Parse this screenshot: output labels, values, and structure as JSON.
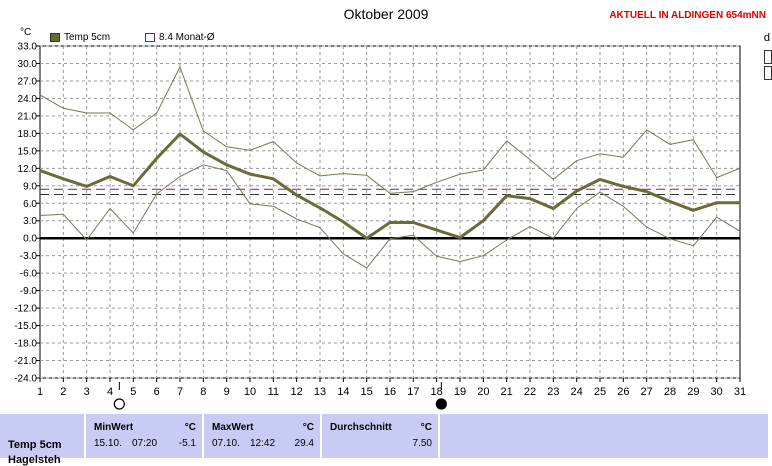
{
  "header": {
    "title": "Oktober 2009",
    "location": "AKTUELL IN ALDINGEN 654mNN",
    "unit": "°C",
    "edge_letter": "d"
  },
  "legend": {
    "temp_label": "Temp 5cm",
    "temp_color": "#6b6b3a",
    "avg_label": "8.4 Monat-Ø",
    "avg_color": "#6a2b6a"
  },
  "chart_data": {
    "type": "line",
    "title": "Oktober 2009",
    "ylabel": "°C",
    "ylim": [
      -24,
      33
    ],
    "yticks": [
      "33.0",
      "30.0",
      "27.0",
      "24.0",
      "21.0",
      "18.0",
      "15.0",
      "12.0",
      "9.0",
      "6.0",
      "3.0",
      "0.0",
      "-3.0",
      "-6.0",
      "-9.0",
      "-12.0",
      "-15.0",
      "-18.0",
      "-21.0",
      "-24.0"
    ],
    "xlim": [
      1,
      31
    ],
    "x": [
      1,
      2,
      3,
      4,
      5,
      6,
      7,
      8,
      9,
      10,
      11,
      12,
      13,
      14,
      15,
      16,
      17,
      18,
      19,
      20,
      21,
      22,
      23,
      24,
      25,
      26,
      27,
      28,
      29,
      30,
      31
    ],
    "series": [
      {
        "name": "Temp 5cm",
        "color": "#6b6b3a",
        "width": 3,
        "values": [
          11.6,
          10.2,
          8.9,
          10.6,
          9.0,
          13.7,
          17.9,
          14.8,
          12.6,
          11.0,
          10.2,
          7.4,
          5.2,
          2.8,
          0.0,
          2.7,
          2.7,
          1.4,
          0.1,
          3.0,
          7.3,
          6.8,
          5.1,
          8.1,
          10.1,
          8.9,
          8.0,
          6.3,
          4.8,
          6.1,
          6.1
        ]
      },
      {
        "name": "Max",
        "color": "#77775a",
        "width": 1,
        "values": [
          24.6,
          22.3,
          21.5,
          21.5,
          18.6,
          21.5,
          29.4,
          18.4,
          15.7,
          15.1,
          16.6,
          12.9,
          10.7,
          11.1,
          10.8,
          7.7,
          8.0,
          9.6,
          11.0,
          11.7,
          16.7,
          13.5,
          10.1,
          13.3,
          14.5,
          13.9,
          18.6,
          16.1,
          16.9,
          10.4,
          12.0
        ]
      },
      {
        "name": "Min",
        "color": "#77775a",
        "width": 1,
        "values": [
          3.9,
          4.1,
          -0.3,
          5.1,
          0.9,
          7.6,
          10.6,
          12.6,
          11.6,
          5.9,
          5.5,
          3.3,
          1.8,
          -2.7,
          -5.1,
          -0.1,
          0.5,
          -3.1,
          -4.0,
          -3.0,
          -0.3,
          2.0,
          0.0,
          5.1,
          7.9,
          5.5,
          1.9,
          -0.1,
          -1.3,
          3.6,
          1.2
        ]
      }
    ],
    "reference_lines": [
      {
        "value": 8.4,
        "color": "#6a2b6a",
        "style": "dashed"
      },
      {
        "value": 7.5,
        "color": "#333333",
        "style": "dashed"
      },
      {
        "value": 0.0,
        "color": "#000000",
        "style": "solid"
      }
    ],
    "markers": [
      {
        "x": 4.4,
        "symbol": "○",
        "meaning": "full-moon"
      },
      {
        "x": 18.2,
        "symbol": "●",
        "meaning": "new-moon"
      }
    ],
    "grid": true
  },
  "table": {
    "row_label": "Temp 5cm",
    "row_label_partial": "Hagelsteh",
    "min": {
      "title": "MinWert",
      "unit": "°C",
      "date": "15.10.",
      "time": "07:20",
      "value": "-5.1"
    },
    "max": {
      "title": "MaxWert",
      "unit": "°C",
      "date": "07.10.",
      "time": "12:42",
      "value": "29.4"
    },
    "avg": {
      "title": "Durchschnitt",
      "unit": "°C",
      "value": "7.50"
    }
  }
}
